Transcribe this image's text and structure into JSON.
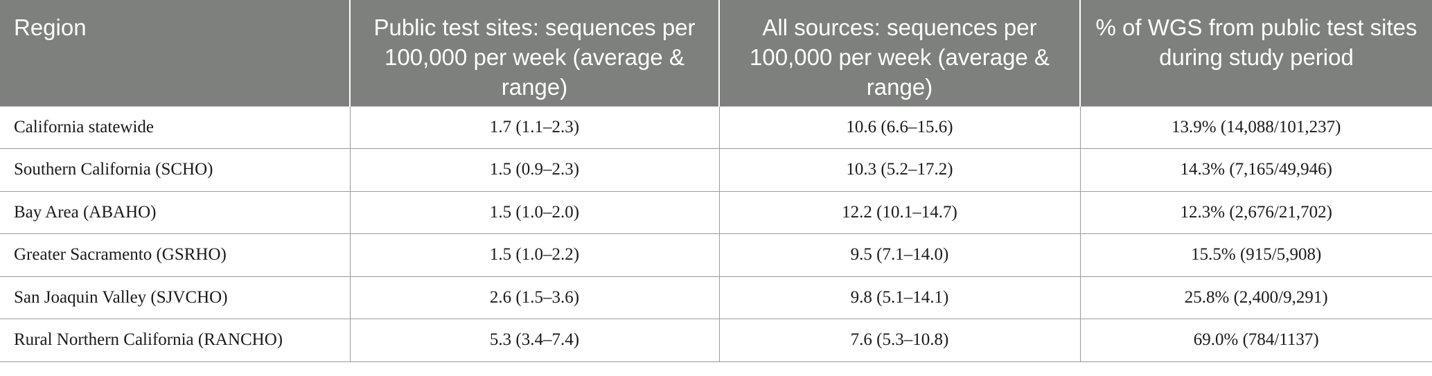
{
  "table": {
    "headers": [
      "Region",
      "Public test sites: sequences per 100,000 per week (average & range)",
      "All sources: sequences per 100,000 per week (average & range)",
      "% of WGS from public test sites during study period"
    ],
    "rows": [
      [
        "California statewide",
        "1.7 (1.1–2.3)",
        "10.6 (6.6–15.6)",
        "13.9% (14,088/101,237)"
      ],
      [
        "Southern California (SCHO)",
        "1.5 (0.9–2.3)",
        "10.3 (5.2–17.2)",
        "14.3% (7,165/49,946)"
      ],
      [
        "Bay Area (ABAHO)",
        "1.5 (1.0–2.0)",
        "12.2 (10.1–14.7)",
        "12.3% (2,676/21,702)"
      ],
      [
        "Greater Sacramento (GSRHO)",
        "1.5 (1.0–2.2)",
        "9.5 (7.1–14.0)",
        "15.5% (915/5,908)"
      ],
      [
        "San Joaquin Valley (SJVCHO)",
        "2.6 (1.5–3.6)",
        "9.8 (5.1–14.1)",
        "25.8% (2,400/9,291)"
      ],
      [
        "Rural Northern California (RANCHO)",
        "5.3 (3.4–7.4)",
        "7.6 (5.3–10.8)",
        "69.0% (784/1137)"
      ]
    ]
  },
  "colors": {
    "header_bg": "#7e807e",
    "header_text": "#ffffff",
    "grid_line": "#9a9a9a"
  }
}
